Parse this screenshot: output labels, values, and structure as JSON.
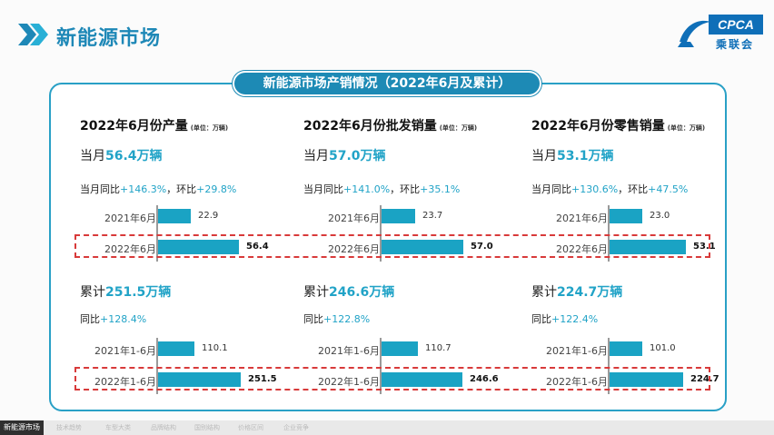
{
  "header": {
    "title": "新能源市场",
    "logo_text": "CPCA",
    "logo_sub": "乘联会"
  },
  "banner": "新能源市场产销情况（2022年6月及累计）",
  "columns": [
    {
      "title": "2022年6月份产量",
      "unit": "(单位：万辆)",
      "month_prefix": "当月",
      "month_value": "56.4万辆",
      "yoy_text": "当月同比",
      "yoy_value": "+146.3%",
      "mom_text": "，环比",
      "mom_value": "+29.8%",
      "monthly_bars": [
        {
          "label": "2021年6月",
          "value": 22.9,
          "text": "22.9"
        },
        {
          "label": "2022年6月",
          "value": 56.4,
          "text": "56.4"
        }
      ],
      "cum_prefix": "累计",
      "cum_value": "251.5万辆",
      "cum_yoy_text": "同比",
      "cum_yoy_value": "+128.4%",
      "cum_bars": [
        {
          "label": "2021年1-6月",
          "value": 110.1,
          "text": "110.1"
        },
        {
          "label": "2022年1-6月",
          "value": 251.5,
          "text": "251.5"
        }
      ]
    },
    {
      "title": "2022年6月份批发销量",
      "unit": "(单位：万辆)",
      "month_prefix": "当月",
      "month_value": "57.0万辆",
      "yoy_text": "当月同比",
      "yoy_value": "+141.0%",
      "mom_text": "，环比",
      "mom_value": "+35.1%",
      "monthly_bars": [
        {
          "label": "2021年6月",
          "value": 23.7,
          "text": "23.7"
        },
        {
          "label": "2022年6月",
          "value": 57.0,
          "text": "57.0"
        }
      ],
      "cum_prefix": "累计",
      "cum_value": "246.6万辆",
      "cum_yoy_text": "同比",
      "cum_yoy_value": "+122.8%",
      "cum_bars": [
        {
          "label": "2021年1-6月",
          "value": 110.7,
          "text": "110.7"
        },
        {
          "label": "2022年1-6月",
          "value": 246.6,
          "text": "246.6"
        }
      ]
    },
    {
      "title": "2022年6月份零售销量",
      "unit": "(单位：万辆)",
      "month_prefix": "当月",
      "month_value": "53.1万辆",
      "yoy_text": "当月同比",
      "yoy_value": "+130.6%",
      "mom_text": "，环比",
      "mom_value": "+47.5%",
      "monthly_bars": [
        {
          "label": "2021年6月",
          "value": 23.0,
          "text": "23.0"
        },
        {
          "label": "2022年6月",
          "value": 53.1,
          "text": "53.1"
        }
      ],
      "cum_prefix": "累计",
      "cum_value": "224.7万辆",
      "cum_yoy_text": "同比",
      "cum_yoy_value": "+122.4%",
      "cum_bars": [
        {
          "label": "2021年1-6月",
          "value": 101.0,
          "text": "101.0"
        },
        {
          "label": "2022年1-6月",
          "value": 224.7,
          "text": "224.7"
        }
      ]
    }
  ],
  "nav": {
    "items": [
      "新能源市场",
      "技术趋势",
      "车型大类",
      "品牌结构",
      "国别结构",
      "价格区间",
      "企业竞争"
    ],
    "active_index": 0
  },
  "colors": {
    "accent": "#21a3c7",
    "bar": "#1aa3c4",
    "title": "#1e88b7",
    "highlight_box": "#d83a3a"
  }
}
